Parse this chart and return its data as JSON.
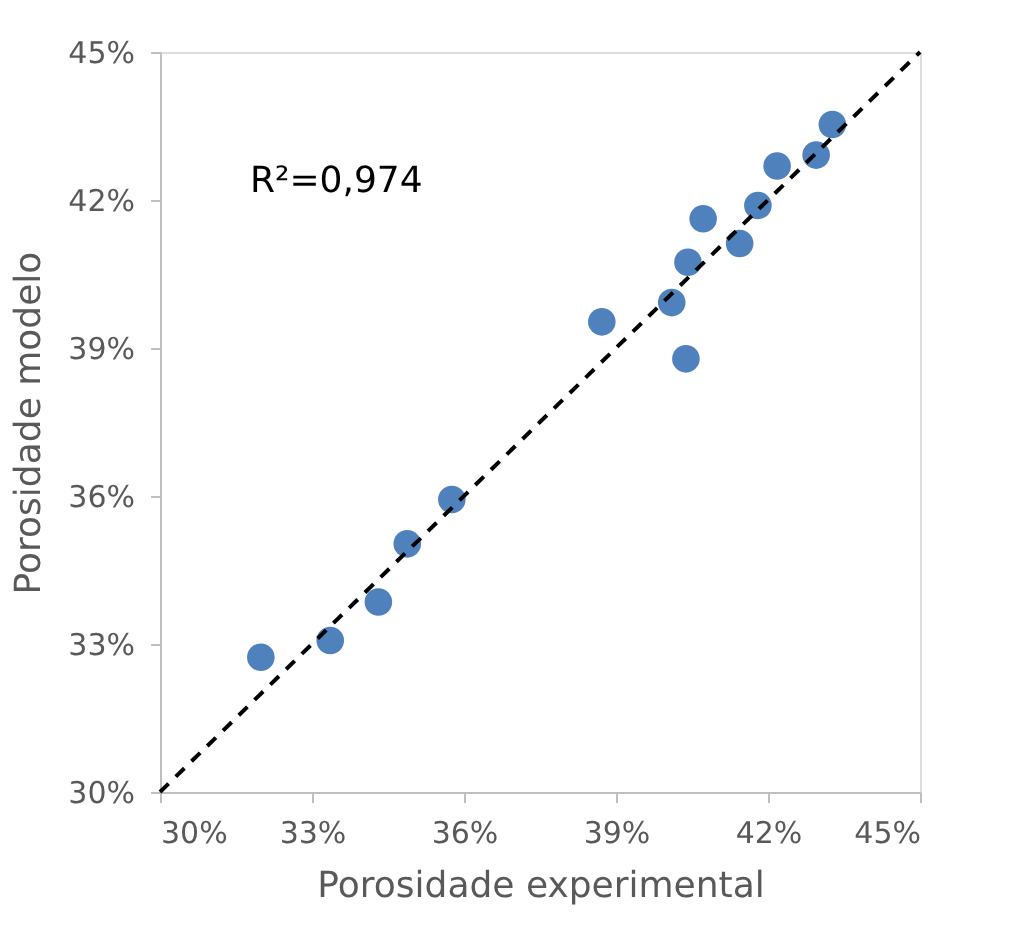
{
  "chart_data": {
    "type": "scatter",
    "xlabel": "Porosidade experimental",
    "ylabel": "Porosidade modelo",
    "xlim": [
      30,
      45
    ],
    "ylim": [
      30,
      45
    ],
    "xticks": [
      {
        "value": 30,
        "label": "30%"
      },
      {
        "value": 33,
        "label": "33%"
      },
      {
        "value": 36,
        "label": "36%"
      },
      {
        "value": 39,
        "label": "39%"
      },
      {
        "value": 42,
        "label": "42%"
      },
      {
        "value": 45,
        "label": "45%"
      }
    ],
    "yticks": [
      {
        "value": 30,
        "label": "30%"
      },
      {
        "value": 33,
        "label": "33%"
      },
      {
        "value": 36,
        "label": "36%"
      },
      {
        "value": 39,
        "label": "39%"
      },
      {
        "value": 42,
        "label": "42%"
      },
      {
        "value": 45,
        "label": "45%"
      }
    ],
    "grid": false,
    "annotations": [
      "R²=0,974"
    ],
    "series": [
      {
        "color": "#4f81bd",
        "marker": "circle",
        "x": [
          31.99,
          33.36,
          34.31,
          34.88,
          35.76,
          38.72,
          40.1,
          40.38,
          40.42,
          40.72,
          41.44,
          41.8,
          42.18,
          42.95,
          43.27
        ],
        "values": [
          32.73,
          33.07,
          33.85,
          35.03,
          35.93,
          39.53,
          39.92,
          38.78,
          40.74,
          41.62,
          41.12,
          41.89,
          42.69,
          42.91,
          43.53
        ]
      },
      {
        "type": "line",
        "color": "#000000",
        "line_style": "dashed",
        "marker": "none",
        "x": [
          30,
          45
        ],
        "values": [
          30,
          45
        ]
      }
    ]
  }
}
